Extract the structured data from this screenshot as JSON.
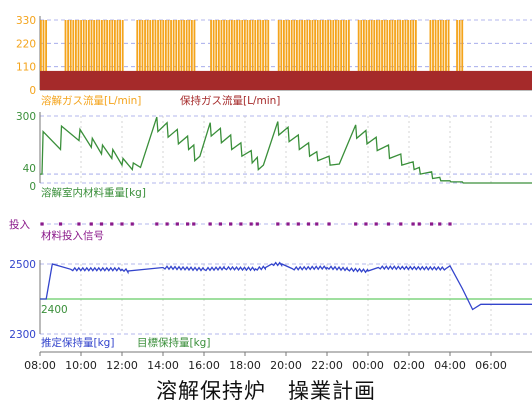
{
  "caption": "溶解保持炉　操業計画",
  "time_ticks": [
    "08:00",
    "10:00",
    "12:00",
    "14:00",
    "16:00",
    "18:00",
    "20:00",
    "22:00",
    "00:00",
    "02:00",
    "04:00",
    "06:00"
  ],
  "colors": {
    "melt_gas": "#F4A41C",
    "hold_gas": "#A52A2A",
    "weight": "#3A8F3A",
    "input": "#8B1A8B",
    "estimate": "#3344CC",
    "target": "#66CC66",
    "axis": "#777777",
    "grid": "#9AA0E8"
  },
  "chart_data": [
    {
      "type": "bar",
      "panel": "gas",
      "legend": [
        "溶解ガス流量[L/min]",
        "保持ガス流量[L/min]"
      ],
      "y_ticks": [
        "330",
        "220",
        "110",
        "0"
      ],
      "ylim": [
        0,
        330
      ],
      "hold_gas_level": 90,
      "melt_gas_level": 330,
      "melt_gas_on_intervals": [
        [
          8.0,
          8.3
        ],
        [
          9.2,
          12.1
        ],
        [
          12.7,
          15.5
        ],
        [
          16.3,
          19.2
        ],
        [
          19.6,
          23.1
        ],
        [
          23.5,
          26.4
        ],
        [
          27.0,
          28.0
        ],
        [
          28.3,
          28.6
        ]
      ],
      "xlim": [
        8,
        32
      ]
    },
    {
      "type": "line",
      "panel": "weight",
      "series": [
        {
          "name": "溶解室内材料重量[kg]"
        }
      ],
      "y_ticks": [
        "300",
        "40",
        "0"
      ],
      "ylim": [
        0,
        300
      ],
      "x": [
        8.0,
        8.1,
        8.15,
        9.0,
        9.05,
        9.9,
        9.95,
        10.5,
        10.55,
        11.0,
        11.05,
        11.5,
        11.55,
        12.0,
        12.05,
        12.5,
        12.55,
        12.9,
        13.7,
        13.75,
        14.2,
        14.25,
        14.7,
        14.75,
        15.2,
        15.25,
        15.5,
        15.55,
        15.8,
        16.3,
        16.35,
        16.8,
        16.85,
        17.3,
        17.35,
        17.8,
        17.85,
        18.3,
        18.35,
        18.6,
        18.65,
        18.9,
        19.6,
        19.65,
        20.1,
        20.15,
        20.6,
        20.65,
        21.1,
        21.15,
        21.5,
        21.55,
        22.1,
        22.15,
        22.6,
        23.4,
        23.45,
        23.9,
        23.95,
        24.4,
        24.45,
        25.0,
        25.05,
        25.6,
        25.65,
        26.2,
        26.25,
        26.5,
        26.55,
        27.1,
        27.15,
        27.5,
        27.55,
        28.0,
        28.05,
        28.6,
        28.65,
        29.0,
        31.0,
        32.0
      ],
      "y": [
        40,
        40,
        230,
        150,
        255,
        190,
        240,
        160,
        200,
        130,
        170,
        110,
        150,
        80,
        110,
        60,
        90,
        70,
        295,
        230,
        270,
        205,
        240,
        175,
        210,
        150,
        170,
        100,
        120,
        270,
        210,
        245,
        180,
        215,
        150,
        180,
        120,
        145,
        90,
        115,
        60,
        80,
        275,
        215,
        250,
        185,
        215,
        150,
        180,
        120,
        140,
        100,
        120,
        80,
        85,
        260,
        200,
        235,
        175,
        205,
        145,
        170,
        110,
        130,
        80,
        95,
        60,
        70,
        40,
        50,
        20,
        25,
        10,
        10,
        5,
        5,
        0,
        0,
        0,
        0
      ],
      "xlim": [
        8,
        32
      ]
    },
    {
      "type": "scatter",
      "panel": "input",
      "series": [
        {
          "name": "材料投入信号"
        }
      ],
      "y_ticks": [
        "投入"
      ],
      "x": [
        8.1,
        9.0,
        9.9,
        10.5,
        11.0,
        11.5,
        12.0,
        12.5,
        13.7,
        14.2,
        14.7,
        15.2,
        15.5,
        16.3,
        16.8,
        17.3,
        17.8,
        18.3,
        18.6,
        19.6,
        20.1,
        20.6,
        21.1,
        21.5,
        22.1,
        23.4,
        23.9,
        24.4,
        25.0,
        25.6,
        26.2,
        26.5,
        27.1,
        27.5,
        28.0
      ],
      "xlim": [
        8,
        32
      ]
    },
    {
      "type": "line",
      "panel": "holding",
      "series": [
        {
          "name": "推定保持量[kg]",
          "x": [
            8.0,
            8.3,
            8.6,
            9.5,
            12.0,
            12.3,
            14.0,
            16.0,
            17.0,
            18.5,
            19.0,
            19.3,
            19.8,
            20.3,
            22.0,
            23.0,
            24.0,
            24.5,
            27.8,
            28.0,
            28.6,
            29.1,
            29.5,
            30.0,
            32.0
          ],
          "y": [
            2400,
            2400,
            2500,
            2485,
            2485,
            2480,
            2490,
            2485,
            2488,
            2486,
            2490,
            2500,
            2500,
            2487,
            2490,
            2485,
            2480,
            2490,
            2487,
            2495,
            2430,
            2370,
            2385,
            2385,
            2385
          ]
        },
        {
          "name": "目標保持量[kg]",
          "x": [
            8.0,
            32.0
          ],
          "y": [
            2400,
            2400
          ]
        }
      ],
      "y_ticks": [
        "2500",
        "2400",
        "2300"
      ],
      "ylim": [
        2300,
        2500
      ],
      "xlim": [
        8,
        32
      ]
    }
  ]
}
